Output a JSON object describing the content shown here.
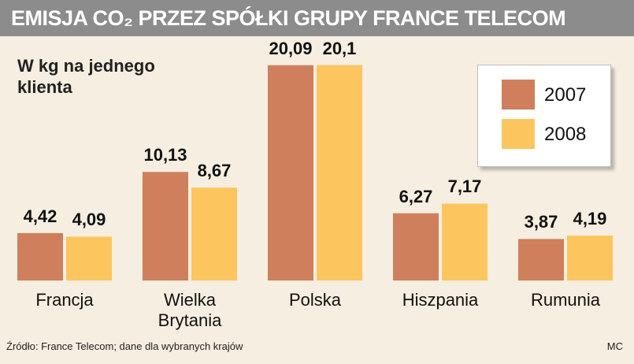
{
  "chart_data": {
    "type": "bar",
    "title": "EMISJA CO₂ PRZEZ SPÓŁKI GRUPY FRANCE TELECOM",
    "subtitle": "W kg na jednego klienta",
    "categories": [
      "Francja",
      "Wielka Brytania",
      "Polska",
      "Hiszpania",
      "Rumunia"
    ],
    "series": [
      {
        "name": "2007",
        "color": "#cf7f5b",
        "values": [
          4.42,
          10.13,
          20.09,
          6.27,
          3.87
        ],
        "value_labels": [
          "4,42",
          "10,13",
          "20,09",
          "6,27",
          "3,87"
        ]
      },
      {
        "name": "2008",
        "color": "#fcc55e",
        "values": [
          4.09,
          8.67,
          20.1,
          7.17,
          4.19
        ],
        "value_labels": [
          "4,09",
          "8,67",
          "20,1",
          "7,17",
          "4,19"
        ]
      }
    ],
    "source": "Źródło: France Telecom; dane dla wybranych krajów",
    "credit": "MC"
  }
}
